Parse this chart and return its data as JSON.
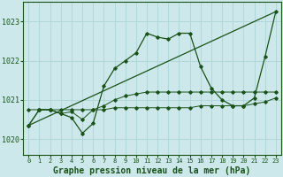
{
  "background_color": "#cce8ea",
  "grid_color": "#aed4d6",
  "line_color": "#1a5218",
  "title": "Graphe pression niveau de la mer (hPa)",
  "title_fontsize": 7,
  "xlim": [
    -0.5,
    23.5
  ],
  "ylim": [
    1019.6,
    1023.5
  ],
  "yticks": [
    1020,
    1021,
    1022,
    1023
  ],
  "xticks": [
    0,
    1,
    2,
    3,
    4,
    5,
    6,
    7,
    8,
    9,
    10,
    11,
    12,
    13,
    14,
    15,
    16,
    17,
    18,
    19,
    20,
    21,
    22,
    23
  ],
  "series_main": [
    1020.35,
    1020.75,
    1020.75,
    1020.65,
    1020.55,
    1020.15,
    1020.4,
    1021.35,
    1021.8,
    1022.0,
    1022.2,
    1022.7,
    1022.6,
    1022.55,
    1022.7,
    1022.7,
    1021.85,
    1021.3,
    1021.0,
    1020.85,
    1020.85,
    1021.05,
    1022.1,
    1023.25
  ],
  "series_flat": [
    1020.75,
    1020.75,
    1020.75,
    1020.75,
    1020.75,
    1020.75,
    1020.75,
    1020.75,
    1020.8,
    1020.8,
    1020.8,
    1020.8,
    1020.8,
    1020.8,
    1020.8,
    1020.8,
    1020.85,
    1020.85,
    1020.85,
    1020.85,
    1020.85,
    1020.9,
    1020.95,
    1021.05
  ],
  "series_diag": [
    [
      0,
      23
    ],
    [
      1020.35,
      1023.25
    ]
  ],
  "series_extra": [
    1020.35,
    1020.75,
    1020.75,
    1020.65,
    1020.7,
    1020.5,
    1020.75,
    1020.85,
    1021.0,
    1021.1,
    1021.15,
    1021.2,
    1021.2,
    1021.2,
    1021.2,
    1021.2,
    1021.2,
    1021.2,
    1021.2,
    1021.2,
    1021.2,
    1021.2,
    1021.2,
    1021.2
  ],
  "marker": "D",
  "markersize": 1.8
}
